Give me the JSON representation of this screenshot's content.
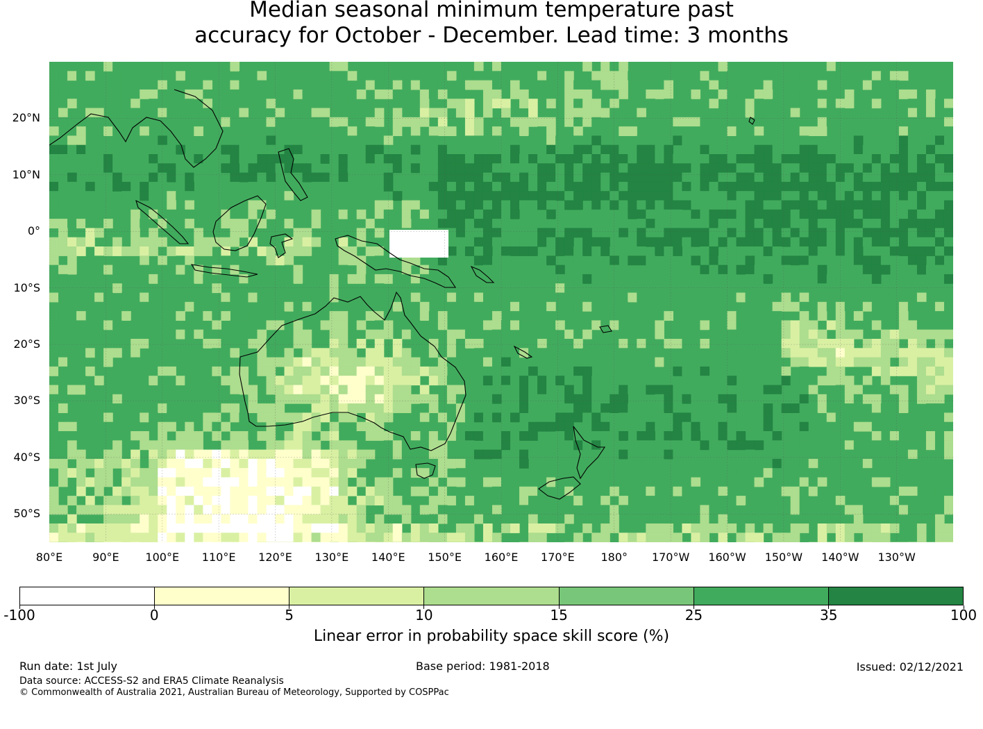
{
  "title": {
    "line1": "Median seasonal minimum temperature past",
    "line2": "accuracy for October - December. Lead time: 3 months"
  },
  "map": {
    "lat_labels": [
      "20°N",
      "10°N",
      "0°",
      "10°S",
      "20°S",
      "30°S",
      "40°S",
      "50°S"
    ],
    "lon_labels": [
      "80°E",
      "90°E",
      "100°E",
      "110°E",
      "120°E",
      "130°E",
      "140°E",
      "150°E",
      "160°E",
      "170°E",
      "180°",
      "170°W",
      "160°W",
      "150°W",
      "140°W",
      "130°W"
    ],
    "region": "Australia, Maritime Continent and Western/Central Pacific",
    "lon_range": [
      80,
      240
    ],
    "lat_range": [
      -55,
      30
    ]
  },
  "colorbar": {
    "label": "Linear error in probability space skill score (%)",
    "ticks": [
      "-100",
      "0",
      "5",
      "10",
      "15",
      "25",
      "35",
      "100"
    ],
    "colors": [
      "#ffffff",
      "#ffffcc",
      "#d9f0a3",
      "#addd8e",
      "#78c679",
      "#41ab5d",
      "#238443"
    ]
  },
  "footer": {
    "run_date": "Run date: 1st July",
    "base_period": "Base period: 1981-2018",
    "issued": "Issued: 02/12/2021",
    "data_source": "Data source: ACCESS-S2 and ERA5 Climate Reanalysis",
    "copyright": "© Commonwealth of Australia 2021, Australian Bureau of Meteorology, Supported by COSPPac"
  }
}
